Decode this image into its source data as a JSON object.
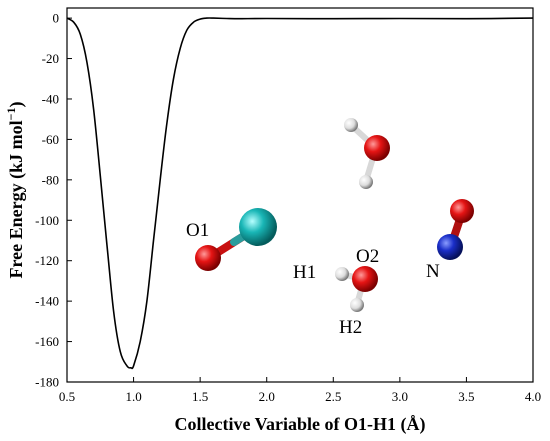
{
  "chart_data": {
    "type": "line",
    "xlabel": "Collective Variable of O1-H1 (Å)",
    "ylabel_main": "Free Energy (kJ mol",
    "ylabel_sup": "−1",
    "ylabel_tail": ")",
    "xlim": [
      0.5,
      4.0
    ],
    "ylim": [
      -180,
      5
    ],
    "xticks": [
      "0.5",
      "1.0",
      "1.5",
      "2.0",
      "2.5",
      "3.0",
      "3.5",
      "4.0"
    ],
    "yticks": [
      "0",
      "-20",
      "-40",
      "-60",
      "-80",
      "-100",
      "-120",
      "-140",
      "-160",
      "-180"
    ],
    "grid": false,
    "series": [
      {
        "color": "#000000",
        "x": [
          0.5,
          0.55,
          0.6,
          0.65,
          0.7,
          0.75,
          0.8,
          0.85,
          0.9,
          0.95,
          0.98,
          1.0,
          1.05,
          1.1,
          1.15,
          1.2,
          1.25,
          1.3,
          1.35,
          1.4,
          1.45,
          1.5,
          1.55,
          1.6,
          1.7,
          1.8,
          2.0,
          2.5,
          3.0,
          3.5,
          4.0
        ],
        "y": [
          0,
          -2,
          -8,
          -22,
          -45,
          -78,
          -112,
          -145,
          -165,
          -172,
          -173,
          -172,
          -160,
          -140,
          -110,
          -80,
          -52,
          -30,
          -15,
          -6,
          -2,
          -0.5,
          0,
          0,
          -0.2,
          -0.3,
          -0.2,
          -0.3,
          -0.2,
          -0.3,
          0
        ]
      }
    ],
    "annotations": {
      "o1": "O1",
      "o2": "O2",
      "h1": "H1",
      "h2": "H2",
      "n": "N"
    }
  },
  "colors": {
    "oxygen": "#e01010",
    "hydrogen": "#ffffff",
    "nitrogen": "#1a2ec8",
    "metal": "#19b6b6",
    "bond_metal": "#2a9c9c"
  }
}
